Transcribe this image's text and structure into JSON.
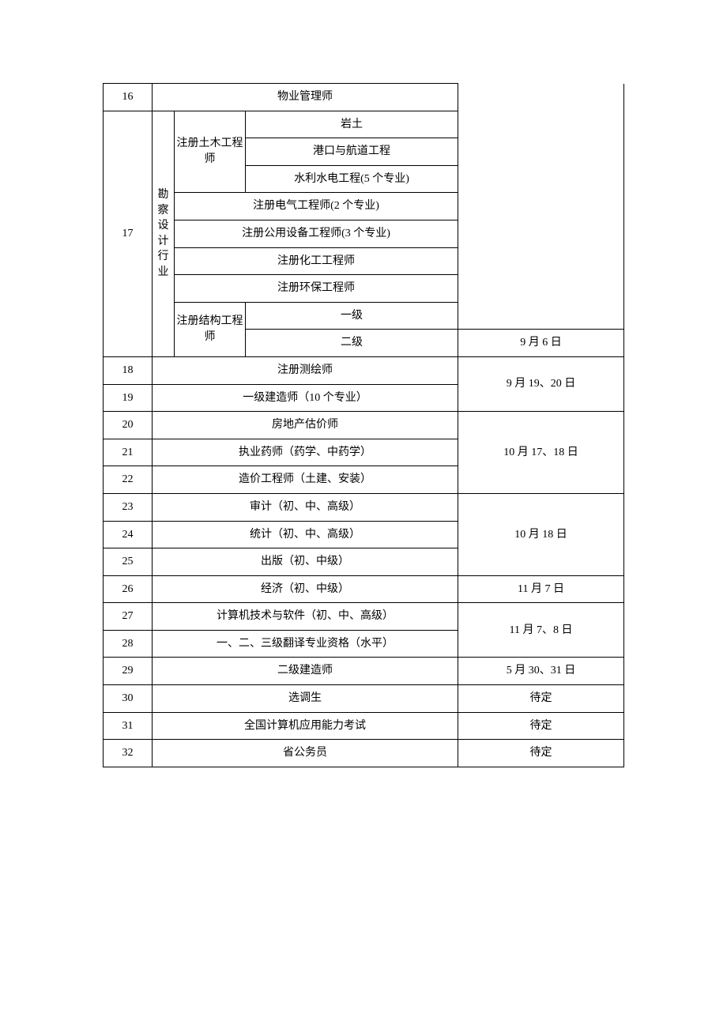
{
  "rows": {
    "r16": {
      "num": "16",
      "name": "物业管理师"
    },
    "r17": {
      "num": "17",
      "category": "勘察设计行业",
      "civilEng": "注册土木工程师",
      "civilSub1": "岩土",
      "civilSub2": "港口与航道工程",
      "civilSub3": "水利水电工程(5 个专业)",
      "elec": "注册电气工程师(2 个专业)",
      "public": "注册公用设备工程师(3 个专业)",
      "chem": "注册化工工程师",
      "env": "注册环保工程师",
      "structEng": "注册结构工程师",
      "structL1": "一级",
      "structL2": "二级",
      "date": "9 月 6 日"
    },
    "r18": {
      "num": "18",
      "name": "注册测绘师"
    },
    "r19": {
      "num": "19",
      "name": "一级建造师（10 个专业）",
      "dateGroup": "9 月 19、20 日"
    },
    "r20": {
      "num": "20",
      "name": "房地产估价师"
    },
    "r21": {
      "num": "21",
      "name": "执业药师（药学、中药学）",
      "dateGroup": "10 月 17、18 日"
    },
    "r22": {
      "num": "22",
      "name": "造价工程师（土建、安装）"
    },
    "r23": {
      "num": "23",
      "name": "审计（初、中、高级）"
    },
    "r24": {
      "num": "24",
      "name": "统计（初、中、高级）",
      "dateGroup": "10 月 18 日"
    },
    "r25": {
      "num": "25",
      "name": "出版（初、中级）"
    },
    "r26": {
      "num": "26",
      "name": "经济（初、中级）",
      "date": "11 月 7 日"
    },
    "r27": {
      "num": "27",
      "name": "计算机技术与软件（初、中、高级）"
    },
    "r28": {
      "num": "28",
      "name": "一、二、三级翻译专业资格（水平）",
      "dateGroup": "11 月 7、8 日"
    },
    "r29": {
      "num": "29",
      "name": "二级建造师",
      "date": "5 月 30、31 日"
    },
    "r30": {
      "num": "30",
      "name": "选调生",
      "date": "待定"
    },
    "r31": {
      "num": "31",
      "name": "全国计算机应用能力考试",
      "date": "待定"
    },
    "r32": {
      "num": "32",
      "name": "省公务员",
      "date": "待定"
    }
  }
}
